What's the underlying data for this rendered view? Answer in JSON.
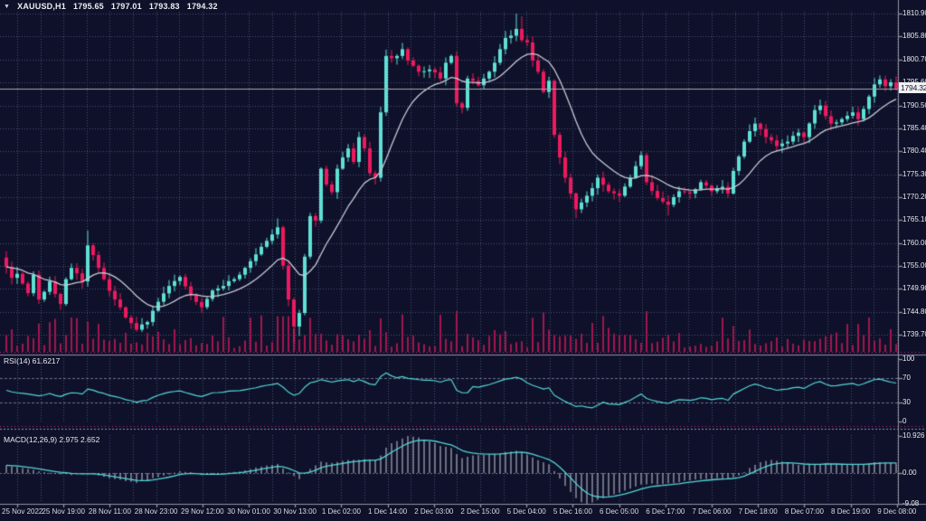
{
  "header": {
    "symbol_period": "XAUUSD,H1",
    "open": "1795.65",
    "high": "1797.01",
    "low": "1793.83",
    "close": "1794.32",
    "collapse_icon": "triangle-down"
  },
  "colors": {
    "background": "#0e1129",
    "bullish": "#5fe0d4",
    "bearish": "#ed1a5e",
    "volume": "#a3164f",
    "ma_line": "#c7cad4",
    "indicator_line": "#53d7d7",
    "histogram": "#c9cdd8",
    "grid": "#474e74",
    "level_line": "#6a7089",
    "separator_accent": "#cc2288",
    "separator_line": "#9094a2",
    "axis_text": "#e8e9ee",
    "price_line": "#a7a9b4",
    "price_box_bg": "#f0f0f2",
    "price_box_text": "#10132c"
  },
  "price_axis": {
    "ticks": [
      "1810.90",
      "1805.80",
      "1800.70",
      "1795.60",
      "1790.50",
      "1785.40",
      "1780.40",
      "1775.30",
      "1770.20",
      "1765.10",
      "1760.00",
      "1755.00",
      "1749.90",
      "1744.80",
      "1739.70"
    ],
    "current_text": "1794.32"
  },
  "time_axis": {
    "labels": [
      "25 Nov 2022",
      "25 Nov 19:00",
      "28 Nov 11:00",
      "28 Nov 23:00",
      "29 Nov 12:00",
      "30 Nov 01:00",
      "30 Nov 13:00",
      "1 Dec 02:00",
      "1 Dec 14:00",
      "2 Dec 03:00",
      "2 Dec 15:00",
      "5 Dec 04:00",
      "5 Dec 16:00",
      "6 Dec 05:00",
      "6 Dec 17:00",
      "7 Dec 06:00",
      "7 Dec 18:00",
      "8 Dec 07:00",
      "8 Dec 19:00",
      "9 Dec 08:00"
    ]
  },
  "rsi": {
    "label": "RSI(14) 61.6217",
    "period": 14,
    "value": 61.6217,
    "ticks": [
      {
        "text": "100",
        "value": 100
      },
      {
        "text": "70",
        "value": 70
      },
      {
        "text": "30",
        "value": 30
      },
      {
        "text": "0",
        "value": 0
      }
    ],
    "levels": [
      70,
      30
    ]
  },
  "macd": {
    "label": "MACD(12,26,9) 2.975 2.652",
    "params": "12,26,9",
    "main_value": 2.975,
    "signal_value": 2.652,
    "ticks": [
      {
        "text": "10.926",
        "value": 10.926
      },
      {
        "text": "0.00",
        "value": 0
      },
      {
        "text": "-9.08",
        "value": -9.08
      }
    ]
  },
  "chart_data": {
    "type": "candlestick",
    "symbol": "XAUUSD",
    "timeframe": "H1",
    "title": "XAUUSD,H1 1795.65 1797.01 1793.83 1794.32",
    "last_quote": {
      "open": 1795.65,
      "high": 1797.01,
      "low": 1793.83,
      "close": 1794.32
    },
    "price_range": {
      "top_value": 1810.9,
      "bottom_value": 1739.7
    },
    "candle_count": 165,
    "first_open": 1756.8,
    "close_keyframes": [
      [
        0,
        1754.7
      ],
      [
        1,
        1752.3
      ],
      [
        2,
        1753.2
      ],
      [
        4,
        1748.9
      ],
      [
        5,
        1753.0
      ],
      [
        6,
        1747.5
      ],
      [
        8,
        1751.5
      ],
      [
        10,
        1746.5
      ],
      [
        11,
        1752.0
      ],
      [
        12,
        1754.5
      ],
      [
        14,
        1751.5
      ],
      [
        15,
        1759.5
      ],
      [
        17,
        1754.5
      ],
      [
        18,
        1752.0
      ],
      [
        20,
        1747.5
      ],
      [
        22,
        1743.5
      ],
      [
        24,
        1740.8
      ],
      [
        26,
        1742.5
      ],
      [
        28,
        1747.0
      ],
      [
        30,
        1750.5
      ],
      [
        32,
        1752.5
      ],
      [
        34,
        1748.5
      ],
      [
        36,
        1745.8
      ],
      [
        38,
        1749.5
      ],
      [
        40,
        1750.5
      ],
      [
        42,
        1752.0
      ],
      [
        44,
        1754.5
      ],
      [
        46,
        1757.5
      ],
      [
        48,
        1760.5
      ],
      [
        50,
        1763.5
      ],
      [
        51,
        1755.0
      ],
      [
        52,
        1747.5
      ],
      [
        53,
        1741.5
      ],
      [
        54,
        1744.5
      ],
      [
        55,
        1757.0
      ],
      [
        56,
        1766.0
      ],
      [
        57,
        1765.0
      ],
      [
        58,
        1776.5
      ],
      [
        59,
        1773.0
      ],
      [
        60,
        1771.3
      ],
      [
        61,
        1776.5
      ],
      [
        62,
        1779.0
      ],
      [
        63,
        1781.0
      ],
      [
        64,
        1778.0
      ],
      [
        65,
        1783.5
      ],
      [
        66,
        1781.0
      ],
      [
        67,
        1775.5
      ],
      [
        68,
        1774.5
      ],
      [
        69,
        1789.0
      ],
      [
        70,
        1801.5
      ],
      [
        71,
        1801.0
      ],
      [
        72,
        1801.5
      ],
      [
        73,
        1803.0
      ],
      [
        74,
        1800.5
      ],
      [
        76,
        1798.0
      ],
      [
        78,
        1798.5
      ],
      [
        80,
        1796.5
      ],
      [
        81,
        1800.0
      ],
      [
        82,
        1801.5
      ],
      [
        83,
        1791.0
      ],
      [
        84,
        1790.0
      ],
      [
        85,
        1796.5
      ],
      [
        86,
        1796.0
      ],
      [
        87,
        1795.0
      ],
      [
        88,
        1796.5
      ],
      [
        89,
        1798.0
      ],
      [
        90,
        1800.0
      ],
      [
        91,
        1803.0
      ],
      [
        92,
        1805.5
      ],
      [
        93,
        1806.0
      ],
      [
        94,
        1807.5
      ],
      [
        95,
        1805.0
      ],
      [
        96,
        1804.5
      ],
      [
        97,
        1800.5
      ],
      [
        98,
        1798.0
      ],
      [
        99,
        1793.5
      ],
      [
        100,
        1796.0
      ],
      [
        101,
        1784.0
      ],
      [
        102,
        1779.0
      ],
      [
        103,
        1774.5
      ],
      [
        104,
        1771.0
      ],
      [
        105,
        1767.5
      ],
      [
        106,
        1769.0
      ],
      [
        107,
        1770.5
      ],
      [
        109,
        1774.5
      ],
      [
        111,
        1771.5
      ],
      [
        113,
        1770.5
      ],
      [
        115,
        1774.5
      ],
      [
        117,
        1779.5
      ],
      [
        118,
        1773.5
      ],
      [
        120,
        1770.0
      ],
      [
        122,
        1768.5
      ],
      [
        124,
        1771.5
      ],
      [
        126,
        1771.0
      ],
      [
        128,
        1773.5
      ],
      [
        130,
        1771.5
      ],
      [
        132,
        1772.5
      ],
      [
        133,
        1771.0
      ],
      [
        134,
        1776.0
      ],
      [
        136,
        1782.5
      ],
      [
        138,
        1786.5
      ],
      [
        140,
        1783.5
      ],
      [
        142,
        1781.5
      ],
      [
        144,
        1782.5
      ],
      [
        146,
        1784.5
      ],
      [
        147,
        1783.5
      ],
      [
        149,
        1789.5
      ],
      [
        150,
        1790.5
      ],
      [
        152,
        1786.5
      ],
      [
        154,
        1787.5
      ],
      [
        156,
        1789.0
      ],
      [
        157,
        1787.5
      ],
      [
        159,
        1792.5
      ],
      [
        160,
        1795.2
      ],
      [
        161,
        1796.3
      ],
      [
        162,
        1794.8
      ],
      [
        163,
        1795.65
      ],
      [
        164,
        1794.32
      ]
    ],
    "wick_overrides": {
      "15": [
        1762.8,
        null
      ],
      "50": [
        1765.5,
        null
      ],
      "53": [
        null,
        1737.9
      ],
      "54": [
        null,
        1739.4
      ],
      "70": [
        1802.9,
        null
      ],
      "94": [
        1810.9,
        null
      ],
      "95": [
        1810.3,
        null
      ],
      "105": [
        null,
        1765.5
      ],
      "122": [
        null,
        1766.1
      ],
      "164": [
        1797.01,
        1793.83
      ]
    },
    "rsi_keyframes": [
      [
        0,
        50
      ],
      [
        2,
        46
      ],
      [
        4,
        44
      ],
      [
        6,
        41
      ],
      [
        8,
        45
      ],
      [
        10,
        40
      ],
      [
        12,
        46
      ],
      [
        14,
        44
      ],
      [
        15,
        52
      ],
      [
        17,
        47
      ],
      [
        18,
        45
      ],
      [
        20,
        40
      ],
      [
        22,
        35
      ],
      [
        24,
        31
      ],
      [
        26,
        34
      ],
      [
        28,
        42
      ],
      [
        30,
        47
      ],
      [
        32,
        49
      ],
      [
        34,
        44
      ],
      [
        36,
        40
      ],
      [
        38,
        46
      ],
      [
        40,
        47
      ],
      [
        42,
        49
      ],
      [
        44,
        51
      ],
      [
        46,
        54
      ],
      [
        48,
        58
      ],
      [
        50,
        61
      ],
      [
        51,
        55
      ],
      [
        52,
        47
      ],
      [
        53,
        42
      ],
      [
        54,
        45
      ],
      [
        55,
        55
      ],
      [
        56,
        62
      ],
      [
        57,
        64
      ],
      [
        58,
        67
      ],
      [
        59,
        65
      ],
      [
        60,
        63
      ],
      [
        61,
        65
      ],
      [
        62,
        66
      ],
      [
        63,
        67
      ],
      [
        64,
        64
      ],
      [
        65,
        67
      ],
      [
        66,
        64
      ],
      [
        67,
        60
      ],
      [
        68,
        59
      ],
      [
        69,
        72
      ],
      [
        70,
        78
      ],
      [
        71,
        73
      ],
      [
        72,
        70
      ],
      [
        73,
        72
      ],
      [
        74,
        69
      ],
      [
        76,
        67
      ],
      [
        78,
        66
      ],
      [
        80,
        63
      ],
      [
        81,
        66
      ],
      [
        82,
        67
      ],
      [
        83,
        50
      ],
      [
        84,
        46
      ],
      [
        85,
        46
      ],
      [
        86,
        56
      ],
      [
        87,
        55
      ],
      [
        88,
        57
      ],
      [
        89,
        59
      ],
      [
        90,
        62
      ],
      [
        91,
        65
      ],
      [
        92,
        68
      ],
      [
        93,
        69
      ],
      [
        94,
        71
      ],
      [
        95,
        68
      ],
      [
        96,
        62
      ],
      [
        97,
        58
      ],
      [
        98,
        55
      ],
      [
        99,
        52
      ],
      [
        100,
        54
      ],
      [
        101,
        42
      ],
      [
        102,
        37
      ],
      [
        103,
        32
      ],
      [
        104,
        28
      ],
      [
        105,
        24
      ],
      [
        106,
        25
      ],
      [
        107,
        23
      ],
      [
        108,
        22
      ],
      [
        109,
        26
      ],
      [
        110,
        31
      ],
      [
        111,
        28
      ],
      [
        113,
        27
      ],
      [
        115,
        34
      ],
      [
        117,
        44
      ],
      [
        118,
        37
      ],
      [
        119,
        34
      ],
      [
        120,
        32
      ],
      [
        122,
        29
      ],
      [
        124,
        35
      ],
      [
        126,
        34
      ],
      [
        128,
        38
      ],
      [
        130,
        35
      ],
      [
        132,
        37
      ],
      [
        133,
        34
      ],
      [
        134,
        44
      ],
      [
        136,
        53
      ],
      [
        138,
        60
      ],
      [
        140,
        54
      ],
      [
        142,
        50
      ],
      [
        144,
        52
      ],
      [
        146,
        55
      ],
      [
        147,
        53
      ],
      [
        149,
        62
      ],
      [
        150,
        64
      ],
      [
        152,
        57
      ],
      [
        154,
        59
      ],
      [
        156,
        61
      ],
      [
        157,
        58
      ],
      [
        159,
        64
      ],
      [
        160,
        67
      ],
      [
        161,
        68
      ],
      [
        163,
        63
      ],
      [
        164,
        61.62
      ]
    ],
    "macd_keyframes": [
      [
        0,
        2.3
      ],
      [
        4,
        1.2
      ],
      [
        8,
        0.1
      ],
      [
        12,
        -0.6
      ],
      [
        16,
        -0.2
      ],
      [
        20,
        -1.8
      ],
      [
        24,
        -2.9
      ],
      [
        28,
        -1.2
      ],
      [
        32,
        0.5
      ],
      [
        34,
        0.2
      ],
      [
        36,
        -0.6
      ],
      [
        40,
        -0.2
      ],
      [
        44,
        0.8
      ],
      [
        47,
        1.9
      ],
      [
        50,
        2.7
      ],
      [
        52,
        0.2
      ],
      [
        54,
        -1.8
      ],
      [
        56,
        1.2
      ],
      [
        58,
        3.4
      ],
      [
        60,
        3.0
      ],
      [
        62,
        3.6
      ],
      [
        64,
        3.9
      ],
      [
        66,
        4.1
      ],
      [
        68,
        3.8
      ],
      [
        69,
        5.2
      ],
      [
        70,
        7.5
      ],
      [
        71,
        8.8
      ],
      [
        73,
        10.2
      ],
      [
        74,
        10.93
      ],
      [
        76,
        10.5
      ],
      [
        78,
        9.4
      ],
      [
        80,
        8.0
      ],
      [
        82,
        7.4
      ],
      [
        83,
        5.6
      ],
      [
        84,
        4.4
      ],
      [
        85,
        4.8
      ],
      [
        86,
        5.2
      ],
      [
        88,
        5.4
      ],
      [
        90,
        5.6
      ],
      [
        92,
        6.2
      ],
      [
        94,
        6.6
      ],
      [
        95,
        6.2
      ],
      [
        96,
        5.4
      ],
      [
        97,
        4.6
      ],
      [
        98,
        3.8
      ],
      [
        100,
        2.6
      ],
      [
        101,
        0.6
      ],
      [
        102,
        -1.6
      ],
      [
        103,
        -3.8
      ],
      [
        104,
        -5.6
      ],
      [
        105,
        -7.4
      ],
      [
        106,
        -8.6
      ],
      [
        107,
        -9.05
      ],
      [
        108,
        -8.7
      ],
      [
        109,
        -7.9
      ],
      [
        111,
        -6.8
      ],
      [
        113,
        -5.8
      ],
      [
        115,
        -4.6
      ],
      [
        117,
        -3.4
      ],
      [
        119,
        -3.1
      ],
      [
        121,
        -3.3
      ],
      [
        123,
        -2.9
      ],
      [
        125,
        -2.3
      ],
      [
        127,
        -1.9
      ],
      [
        129,
        -1.7
      ],
      [
        131,
        -1.5
      ],
      [
        133,
        -1.6
      ],
      [
        135,
        -0.7
      ],
      [
        137,
        1.5
      ],
      [
        139,
        3.2
      ],
      [
        141,
        3.9
      ],
      [
        143,
        3.4
      ],
      [
        145,
        2.8
      ],
      [
        147,
        2.3
      ],
      [
        149,
        2.5
      ],
      [
        151,
        2.9
      ],
      [
        153,
        2.6
      ],
      [
        155,
        2.5
      ],
      [
        157,
        2.55
      ],
      [
        159,
        2.9
      ],
      [
        161,
        3.2
      ],
      [
        163,
        3.05
      ],
      [
        164,
        2.975
      ]
    ],
    "macd_scale": {
      "max": 10.926,
      "min": -9.08
    },
    "legend": {
      "ma": "moving-average-line",
      "volume": "tick-volume-bars",
      "rsi_pane": "RSI(14)",
      "macd_pane": "MACD(12,26,9)"
    }
  }
}
